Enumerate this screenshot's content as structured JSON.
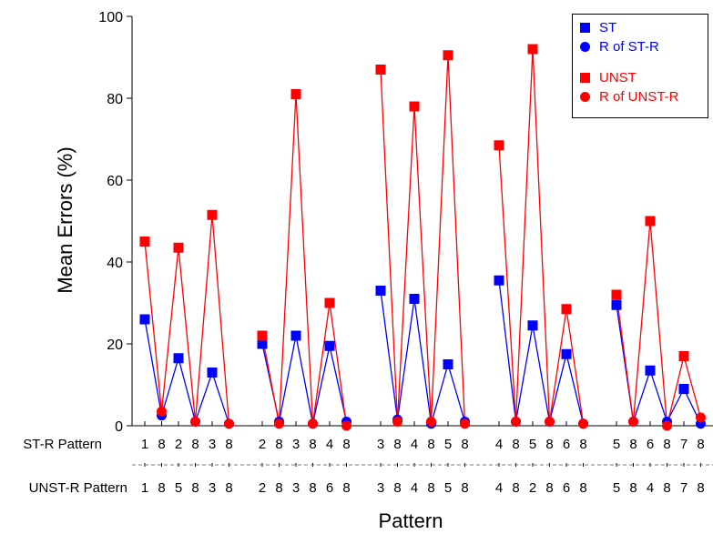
{
  "chart_data": {
    "type": "line",
    "ylabel": "Mean Errors (%)",
    "xlabel": "Pattern",
    "ylim": [
      0,
      100
    ],
    "yticks": [
      0,
      20,
      40,
      60,
      80,
      100
    ],
    "grid": false,
    "legend_position": "top-right",
    "row_labels": {
      "st": "ST-R Pattern",
      "unst": "UNST-R Pattern"
    },
    "groups": [
      {
        "st": [
          "1",
          "8",
          "2",
          "8",
          "3",
          "8"
        ],
        "unst": [
          "1",
          "8",
          "5",
          "8",
          "3",
          "8"
        ]
      },
      {
        "st": [
          "2",
          "8",
          "3",
          "8",
          "4",
          "8"
        ],
        "unst": [
          "2",
          "8",
          "3",
          "8",
          "6",
          "8"
        ]
      },
      {
        "st": [
          "3",
          "8",
          "4",
          "8",
          "5",
          "8"
        ],
        "unst": [
          "3",
          "8",
          "4",
          "8",
          "5",
          "8"
        ]
      },
      {
        "st": [
          "4",
          "8",
          "5",
          "8",
          "6",
          "8"
        ],
        "unst": [
          "4",
          "8",
          "2",
          "8",
          "6",
          "8"
        ]
      },
      {
        "st": [
          "5",
          "8",
          "6",
          "8",
          "7",
          "8"
        ],
        "unst": [
          "5",
          "8",
          "4",
          "8",
          "7",
          "8"
        ]
      }
    ],
    "series": [
      {
        "name": "ST",
        "kind": "ST",
        "color": "#0000ff",
        "marker": "square",
        "values": [
          [
            26,
            null,
            16.5,
            null,
            13,
            null
          ],
          [
            20,
            null,
            22,
            null,
            19.5,
            null
          ],
          [
            33,
            null,
            31,
            null,
            15,
            null
          ],
          [
            35.5,
            null,
            24.5,
            null,
            17.5,
            null
          ],
          [
            29.5,
            null,
            13.5,
            null,
            9,
            null
          ]
        ]
      },
      {
        "name": "R of ST-R",
        "kind": "ST",
        "color": "#0000ff",
        "marker": "circle",
        "values": [
          [
            null,
            2.5,
            null,
            1,
            null,
            0.5
          ],
          [
            null,
            1,
            null,
            0.5,
            null,
            1
          ],
          [
            null,
            1.5,
            null,
            0.5,
            null,
            1
          ],
          [
            null,
            1,
            null,
            1,
            null,
            0.5
          ],
          [
            null,
            1,
            null,
            1,
            null,
            0.5
          ]
        ]
      },
      {
        "name": "UNST",
        "kind": "UNST",
        "color": "#ff0000",
        "marker": "square",
        "values": [
          [
            45,
            null,
            43.5,
            null,
            51.5,
            null
          ],
          [
            22,
            null,
            81,
            null,
            30,
            null
          ],
          [
            87,
            null,
            78,
            null,
            90.5,
            null
          ],
          [
            68.5,
            null,
            92,
            null,
            28.5,
            null
          ],
          [
            32,
            null,
            50,
            null,
            17,
            null
          ]
        ]
      },
      {
        "name": "R of UNST-R",
        "kind": "UNST",
        "color": "#ff0000",
        "marker": "circle",
        "values": [
          [
            null,
            3.5,
            null,
            1,
            null,
            0.5
          ],
          [
            null,
            0.5,
            null,
            0.5,
            null,
            0
          ],
          [
            null,
            1,
            null,
            1,
            null,
            0.5
          ],
          [
            null,
            1,
            null,
            1,
            null,
            0.5
          ],
          [
            null,
            1,
            null,
            0,
            null,
            2
          ]
        ]
      }
    ]
  }
}
